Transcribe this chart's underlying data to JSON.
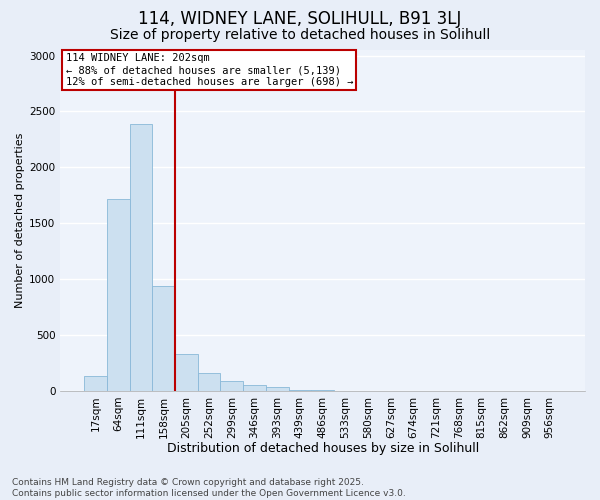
{
  "title1": "114, WIDNEY LANE, SOLIHULL, B91 3LJ",
  "title2": "Size of property relative to detached houses in Solihull",
  "xlabel": "Distribution of detached houses by size in Solihull",
  "ylabel": "Number of detached properties",
  "categories": [
    "17sqm",
    "64sqm",
    "111sqm",
    "158sqm",
    "205sqm",
    "252sqm",
    "299sqm",
    "346sqm",
    "393sqm",
    "439sqm",
    "486sqm",
    "533sqm",
    "580sqm",
    "627sqm",
    "674sqm",
    "721sqm",
    "768sqm",
    "815sqm",
    "862sqm",
    "909sqm",
    "956sqm"
  ],
  "values": [
    130,
    1720,
    2390,
    940,
    330,
    160,
    85,
    55,
    30,
    8,
    5,
    3,
    2,
    1,
    0,
    0,
    0,
    0,
    0,
    0,
    0
  ],
  "bar_color": "#cce0f0",
  "bar_edge_color": "#89b8d8",
  "vline_color": "#bb0000",
  "annotation_text": "114 WIDNEY LANE: 202sqm\n← 88% of detached houses are smaller (5,139)\n12% of semi-detached houses are larger (698) →",
  "annotation_box_color": "#bb0000",
  "ylim": [
    0,
    3050
  ],
  "yticks": [
    0,
    500,
    1000,
    1500,
    2000,
    2500,
    3000
  ],
  "bg_color": "#e8eef8",
  "plot_bg_color": "#eef3fb",
  "grid_color": "#ffffff",
  "footnote": "Contains HM Land Registry data © Crown copyright and database right 2025.\nContains public sector information licensed under the Open Government Licence v3.0.",
  "title1_fontsize": 12,
  "title2_fontsize": 10,
  "xlabel_fontsize": 9,
  "ylabel_fontsize": 8,
  "tick_fontsize": 7.5,
  "annotation_fontsize": 7.5,
  "footnote_fontsize": 6.5
}
